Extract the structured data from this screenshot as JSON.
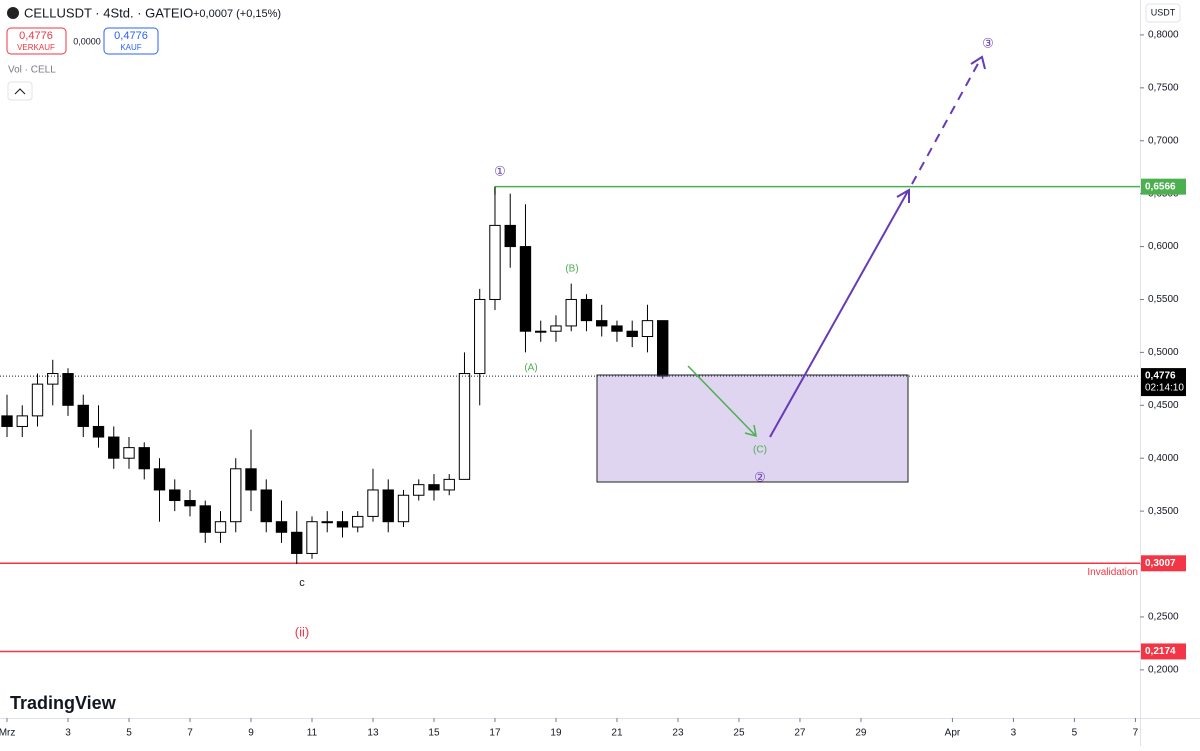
{
  "header": {
    "symbol": "CELLUSDT · 4Std. · GATEIO",
    "change": "+0,0007 (+0,15%)",
    "sell_price": "0,4776",
    "sell_label": "VERKAUF",
    "spread": "0,0000",
    "buy_price": "0,4776",
    "buy_label": "KAUF",
    "volume": "Vol · CELL",
    "currency": "USDT",
    "brand": "TradingView"
  },
  "chart_data": {
    "type": "candlestick",
    "x": [
      1,
      1.5,
      2,
      2.5,
      3,
      3.5,
      4,
      4.5,
      5,
      5.5,
      6,
      6.5,
      7,
      7.5,
      8,
      8.5,
      9,
      9.5,
      10,
      10.5,
      11,
      11.5,
      12,
      12.5,
      13,
      13.5,
      14,
      14.5,
      15,
      15.5,
      16,
      16.5,
      17,
      17.5,
      18,
      18.5,
      19,
      19.5,
      20,
      20.5,
      21,
      21.5,
      22,
      22.5
    ],
    "open": [
      0.44,
      0.43,
      0.44,
      0.47,
      0.48,
      0.45,
      0.43,
      0.42,
      0.4,
      0.41,
      0.39,
      0.37,
      0.36,
      0.355,
      0.33,
      0.34,
      0.39,
      0.37,
      0.34,
      0.33,
      0.31,
      0.34,
      0.34,
      0.335,
      0.345,
      0.37,
      0.34,
      0.365,
      0.375,
      0.37,
      0.38,
      0.48,
      0.55,
      0.62,
      0.6,
      0.52,
      0.52,
      0.525,
      0.55,
      0.53,
      0.525,
      0.52,
      0.515,
      0.53
    ],
    "high": [
      0.46,
      0.45,
      0.48,
      0.493,
      0.485,
      0.46,
      0.45,
      0.43,
      0.42,
      0.415,
      0.4,
      0.38,
      0.37,
      0.36,
      0.35,
      0.4,
      0.427,
      0.38,
      0.36,
      0.35,
      0.345,
      0.35,
      0.35,
      0.35,
      0.39,
      0.38,
      0.37,
      0.38,
      0.385,
      0.385,
      0.5,
      0.56,
      0.6566,
      0.65,
      0.64,
      0.53,
      0.535,
      0.565,
      0.555,
      0.545,
      0.53,
      0.53,
      0.545,
      0.53
    ],
    "low": [
      0.42,
      0.42,
      0.43,
      0.45,
      0.44,
      0.42,
      0.41,
      0.39,
      0.39,
      0.38,
      0.34,
      0.35,
      0.345,
      0.32,
      0.32,
      0.33,
      0.35,
      0.33,
      0.32,
      0.3,
      0.305,
      0.33,
      0.325,
      0.33,
      0.34,
      0.33,
      0.335,
      0.36,
      0.36,
      0.365,
      0.38,
      0.45,
      0.54,
      0.58,
      0.5,
      0.51,
      0.51,
      0.52,
      0.52,
      0.515,
      0.51,
      0.505,
      0.5,
      0.475
    ],
    "close": [
      0.43,
      0.44,
      0.47,
      0.48,
      0.45,
      0.43,
      0.42,
      0.4,
      0.41,
      0.39,
      0.37,
      0.36,
      0.355,
      0.33,
      0.34,
      0.39,
      0.37,
      0.34,
      0.33,
      0.31,
      0.34,
      0.34,
      0.335,
      0.345,
      0.37,
      0.34,
      0.365,
      0.375,
      0.37,
      0.38,
      0.48,
      0.55,
      0.62,
      0.6,
      0.52,
      0.52,
      0.525,
      0.55,
      0.53,
      0.525,
      0.52,
      0.515,
      0.53,
      0.4776
    ],
    "up_color": "#ffffff",
    "down_color": "#000000",
    "xlim": [
      0.77,
      38.15
    ],
    "xticks": [
      {
        "value": 1,
        "label": "Mrz"
      },
      3,
      5,
      7,
      9,
      11,
      13,
      15,
      17,
      19,
      21,
      23,
      25,
      27,
      29,
      {
        "value": 32,
        "label": "Apr"
      },
      {
        "value": 34,
        "label": "3"
      },
      {
        "value": 36,
        "label": "5"
      },
      {
        "value": 38,
        "label": "7"
      }
    ],
    "ylim": [
      0.1545,
      0.833
    ],
    "yticks": [
      {
        "value": 0.8,
        "label": "0,8000"
      },
      {
        "value": 0.75,
        "label": "0,7500"
      },
      {
        "value": 0.7,
        "label": "0,7000"
      },
      {
        "value": 0.65,
        "label": "0,6500"
      },
      {
        "value": 0.6,
        "label": "0,6000"
      },
      {
        "value": 0.55,
        "label": "0,5500"
      },
      {
        "value": 0.5,
        "label": "0,5000"
      },
      {
        "value": 0.45,
        "label": "0,4500"
      },
      {
        "value": 0.4,
        "label": "0,4000"
      },
      {
        "value": 0.35,
        "label": "0,3500"
      },
      {
        "value": 0.3,
        "label": "0,3000"
      },
      {
        "value": 0.25,
        "label": "0,2500"
      },
      {
        "value": 0.2,
        "label": "0,2000"
      }
    ],
    "levels": [
      {
        "value": 0.6566,
        "label": "0,6566",
        "color": "#4caf50",
        "from": 17
      },
      {
        "value": 0.3007,
        "label": "0,3007",
        "color": "#f23645",
        "note": "Invalidation"
      },
      {
        "value": 0.2174,
        "label": "0,2174",
        "color": "#f23645"
      }
    ],
    "last_price": {
      "value": 0.4776,
      "label": "0,4776",
      "countdown": "02:14:10"
    },
    "annotations": [
      "①",
      "(B)",
      "(A)",
      "(C)",
      "②",
      "③",
      "c",
      "(ii)"
    ]
  }
}
